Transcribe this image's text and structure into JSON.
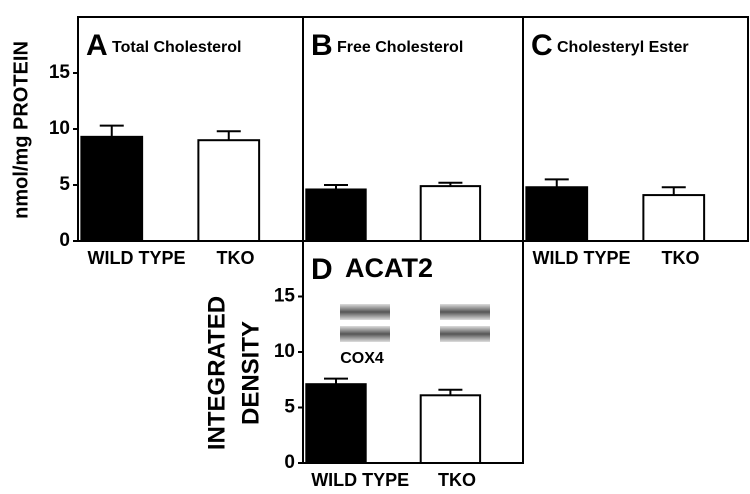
{
  "chart_data": [
    {
      "type": "bar",
      "panel": "A",
      "title": "Total Cholesterol",
      "ylabel": [
        "nmol/mg PROTEIN"
      ],
      "categories": [
        "WILD TYPE",
        "TKO"
      ],
      "values": [
        9.3,
        9.0
      ],
      "errors": [
        1.0,
        0.8
      ],
      "colors": [
        "#000000",
        "#ffffff"
      ],
      "ylim": [
        0,
        20
      ],
      "yticks": [
        0,
        5,
        10,
        15
      ]
    },
    {
      "type": "bar",
      "panel": "B",
      "title": "Free Cholesterol",
      "categories": [
        null,
        null
      ],
      "values": [
        4.6,
        4.9
      ],
      "errors": [
        0.4,
        0.3
      ],
      "colors": [
        "#000000",
        "#ffffff"
      ],
      "ylim": [
        0,
        20
      ]
    },
    {
      "type": "bar",
      "panel": "C",
      "title": "Cholesteryl Ester",
      "categories": [
        "WILD TYPE",
        "TKO"
      ],
      "values": [
        4.8,
        4.1
      ],
      "errors": [
        0.7,
        0.7
      ],
      "colors": [
        "#000000",
        "#ffffff"
      ],
      "ylim": [
        0,
        20
      ]
    },
    {
      "type": "bar",
      "panel": "D",
      "title": "ACAT2",
      "ylabel": [
        "INTEGRATED",
        "DENSITY"
      ],
      "annotation": "COX4",
      "categories": [
        "WILD TYPE",
        "TKO"
      ],
      "values": [
        7.1,
        6.1
      ],
      "errors": [
        0.5,
        0.5
      ],
      "colors": [
        "#000000",
        "#ffffff"
      ],
      "ylim": [
        0,
        20
      ],
      "yticks": [
        0,
        5,
        10,
        15
      ]
    }
  ]
}
